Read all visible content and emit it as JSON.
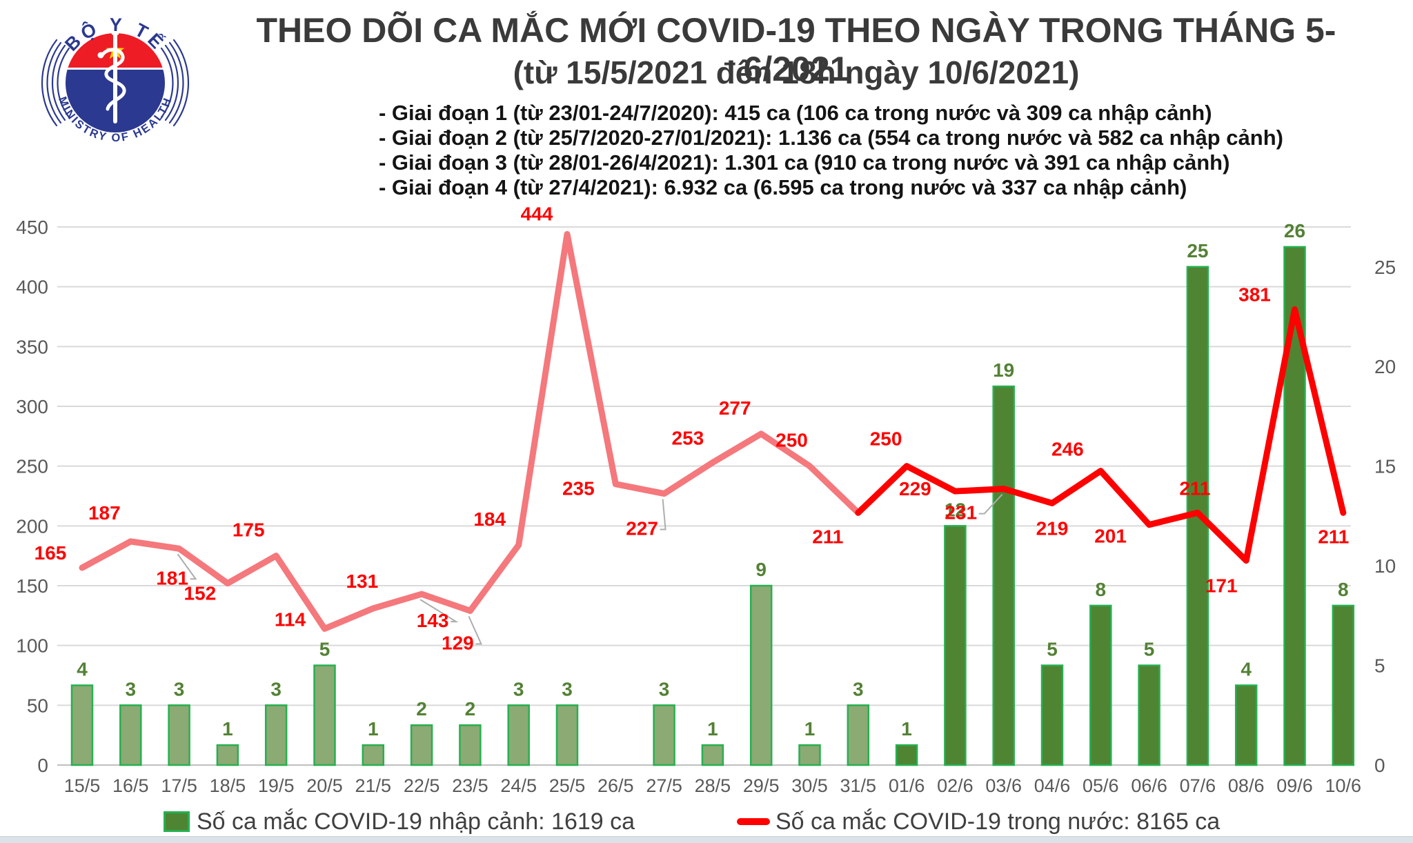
{
  "header": {
    "title": "THEO DÕI CA MẮC MỚI COVID-19 THEO NGÀY TRONG THÁNG 5-6/2021",
    "subtitle": "(từ 15/5/2021 đến 18h ngày 10/6/2021)",
    "phases": [
      "- Giai đoạn 1 (từ 23/01-24/7/2020): 415 ca (106 ca trong nước và 309 ca nhập cảnh)",
      "- Giai đoạn 2 (từ 25/7/2020-27/01/2021): 1.136 ca (554 ca trong nước và 582 ca nhập cảnh)",
      "- Giai đoạn 3 (từ 28/01-26/4/2021): 1.301 ca (910 ca trong nước và 391 ca nhập cảnh)",
      "- Giai đoạn 4 (từ 27/4/2021): 6.932 ca (6.595 ca trong nước và 337 ca nhập cảnh)"
    ]
  },
  "logo": {
    "top_text": "BỘ Y TẾ",
    "bottom_text": "MINISTRY OF HEALTH"
  },
  "legend": {
    "bars_label": "Số ca mắc COVID-19 nhập cảnh: 1619 ca",
    "line_label": "Số ca mắc COVID-19 trong nước: 8165 ca"
  },
  "colors": {
    "may_bar_fill": "#8CAA73",
    "june_bar_fill": "#4F8433",
    "bar_border": "#27B050",
    "bar_label": "#538135",
    "line_may": "#F4787C",
    "line_june": "#FE0000",
    "line_label": "#FF0000",
    "axis_text": "#595959",
    "grid": "#D9D9D9",
    "axis_line": "#BFBFBF",
    "leader": "#ADADAD",
    "logo_blue": "#2B3990",
    "logo_red": "#EE1C25",
    "star_yellow": "#FFD400"
  },
  "chart_data": {
    "type": "bar+line",
    "categories": [
      "15/5",
      "16/5",
      "17/5",
      "18/5",
      "19/5",
      "20/5",
      "21/5",
      "22/5",
      "23/5",
      "24/5",
      "25/5",
      "26/5",
      "27/5",
      "28/5",
      "29/5",
      "30/5",
      "31/5",
      "01/6",
      "02/6",
      "03/6",
      "04/6",
      "05/6",
      "06/6",
      "07/6",
      "08/6",
      "09/6",
      "10/6"
    ],
    "series": [
      {
        "name": "Số ca mắc COVID-19 nhập cảnh",
        "type": "bar",
        "axis": "right",
        "values": [
          4,
          3,
          3,
          1,
          3,
          5,
          1,
          2,
          2,
          3,
          3,
          0,
          3,
          1,
          9,
          1,
          3,
          1,
          12,
          19,
          5,
          8,
          5,
          25,
          4,
          26,
          8
        ]
      },
      {
        "name": "Số ca mắc COVID-19 trong nước",
        "type": "line",
        "axis": "left",
        "values": [
          165,
          187,
          181,
          152,
          175,
          114,
          131,
          143,
          129,
          184,
          444,
          235,
          227,
          253,
          277,
          250,
          211,
          250,
          229,
          231,
          219,
          246,
          201,
          211,
          171,
          381,
          211
        ]
      }
    ],
    "left_axis": {
      "min": 0,
      "max": 450,
      "ticks": [
        0,
        50,
        100,
        150,
        200,
        250,
        300,
        350,
        400,
        450
      ]
    },
    "right_axis": {
      "min": 0,
      "max": 27,
      "ticks": [
        0,
        5,
        10,
        15,
        20,
        25
      ]
    },
    "grid": true,
    "legend_position": "bottom",
    "style": {
      "bar_dark_from_index": 17,
      "line_red_from_index": 16
    }
  }
}
